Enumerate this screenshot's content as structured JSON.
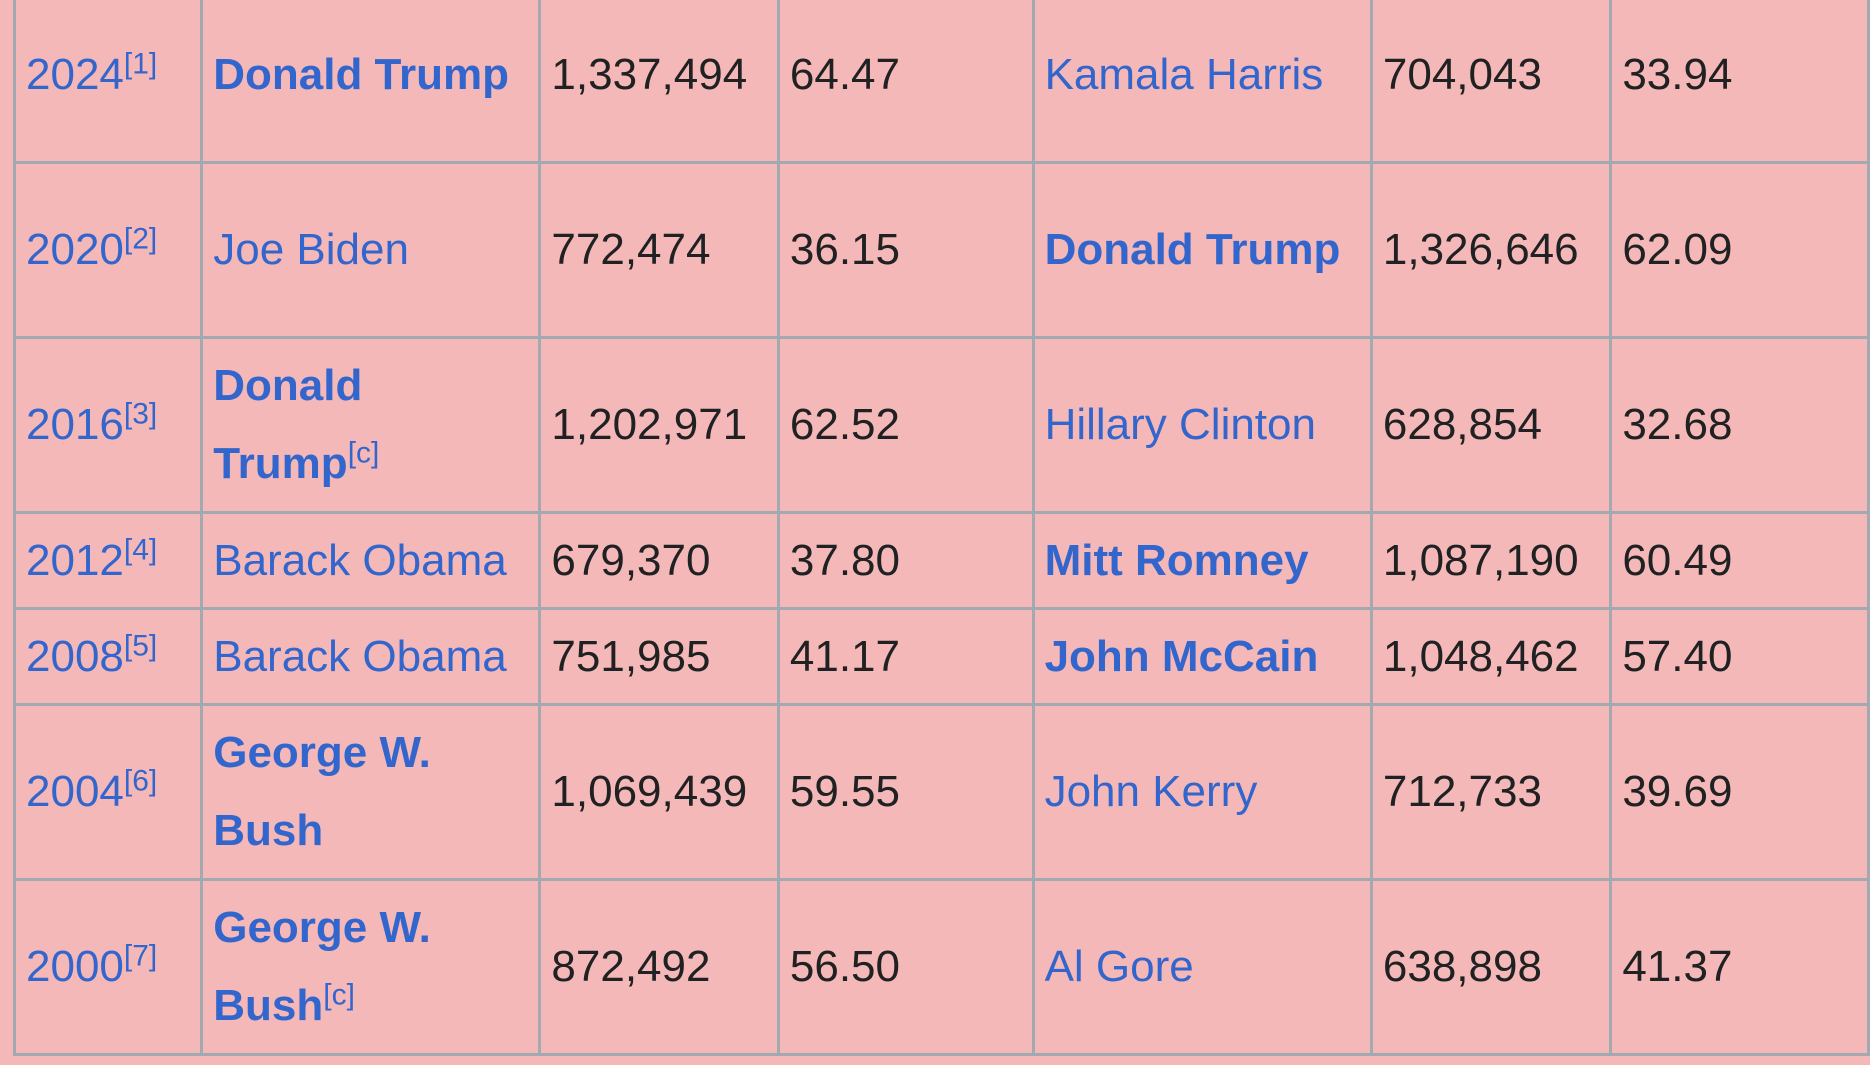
{
  "rows": [
    {
      "year": "2024",
      "ref": "[1]",
      "rep": "Donald Trump",
      "rep_note": "",
      "rep_votes": "1,337,494",
      "rep_pct": "64.47",
      "dem": "Kamala Harris",
      "dem_votes": "704,043",
      "dem_pct": "33.94",
      "winner": "rep"
    },
    {
      "year": "2020",
      "ref": "[2]",
      "rep": "Joe Biden",
      "rep_note": "",
      "rep_votes": "772,474",
      "rep_pct": "36.15",
      "dem": "Donald Trump",
      "dem_votes": "1,326,646",
      "dem_pct": "62.09",
      "winner": "dem"
    },
    {
      "year": "2016",
      "ref": "[3]",
      "rep": "Donald Trump",
      "rep_note": "[c]",
      "rep_votes": "1,202,971",
      "rep_pct": "62.52",
      "dem": "Hillary Clinton",
      "dem_votes": "628,854",
      "dem_pct": "32.68",
      "winner": "rep"
    },
    {
      "year": "2012",
      "ref": "[4]",
      "rep": "Barack Obama",
      "rep_note": "",
      "rep_votes": "679,370",
      "rep_pct": "37.80",
      "dem": "Mitt Romney",
      "dem_votes": "1,087,190",
      "dem_pct": "60.49",
      "winner": "dem"
    },
    {
      "year": "2008",
      "ref": "[5]",
      "rep": "Barack Obama",
      "rep_note": "",
      "rep_votes": "751,985",
      "rep_pct": "41.17",
      "dem": "John McCain",
      "dem_votes": "1,048,462",
      "dem_pct": "57.40",
      "winner": "dem"
    },
    {
      "year": "2004",
      "ref": "[6]",
      "rep": "George W. Bush",
      "rep_note": "",
      "rep_votes": "1,069,439",
      "rep_pct": "59.55",
      "dem": "John Kerry",
      "dem_votes": "712,733",
      "dem_pct": "39.69",
      "winner": "rep"
    },
    {
      "year": "2000",
      "ref": "[7]",
      "rep": "George W. Bush",
      "rep_note": "[c]",
      "rep_votes": "872,492",
      "rep_pct": "56.50",
      "dem": "Al Gore",
      "dem_votes": "638,898",
      "dem_pct": "41.37",
      "winner": "rep"
    }
  ],
  "colors": {
    "background": "#f5b8b8",
    "link": "#3366cc",
    "border": "#a2a9b1"
  }
}
